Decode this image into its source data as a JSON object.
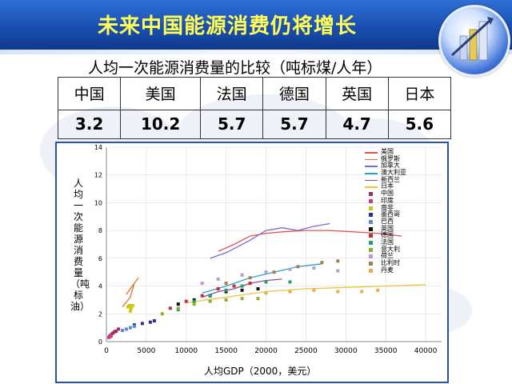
{
  "header": {
    "title": "未来中国能源消费仍将增长"
  },
  "subtitle": "人均一次能源消费量的比较（吨标煤/人年）",
  "comparison_table": {
    "countries": [
      "中国",
      "美国",
      "法国",
      "德国",
      "英国",
      "日本"
    ],
    "values": [
      "3.2",
      "10.2",
      "5.7",
      "5.7",
      "4.7",
      "5.6"
    ]
  },
  "chart_data": {
    "type": "scatter",
    "xlabel": "人均GDP（2000，美元）",
    "ylabel": "人均一次能源消费量（吨标油）",
    "xlim": [
      0,
      42000
    ],
    "ylim": [
      0,
      14
    ],
    "xticks": [
      "0",
      "5000",
      "10000",
      "15000",
      "20000",
      "25000",
      "30000",
      "35000",
      "40000"
    ],
    "yticks": [
      "0",
      "2",
      "4",
      "6",
      "8",
      "10",
      "12",
      "14"
    ],
    "grid": true,
    "legend_position": "right",
    "series": [
      {
        "name": "美国",
        "color": "#e05050",
        "style": "line",
        "points": [
          [
            14000,
            6.5
          ],
          [
            16000,
            7.0
          ],
          [
            18000,
            7.6
          ],
          [
            20000,
            7.8
          ],
          [
            22000,
            7.9
          ],
          [
            25000,
            8.0
          ],
          [
            28000,
            8.0
          ],
          [
            31000,
            7.9
          ],
          [
            34000,
            7.8
          ],
          [
            37000,
            7.6
          ]
        ]
      },
      {
        "name": "俄罗斯",
        "color": "#e07030",
        "style": "line",
        "points": [
          [
            2000,
            2.5
          ],
          [
            3000,
            3.2
          ],
          [
            3500,
            4.2
          ],
          [
            4000,
            4.6
          ],
          [
            3000,
            3.8
          ],
          [
            2500,
            3.4
          ]
        ]
      },
      {
        "name": "加拿大",
        "color": "#7a6ad0",
        "style": "line",
        "points": [
          [
            13000,
            6.0
          ],
          [
            15000,
            6.4
          ],
          [
            18000,
            7.3
          ],
          [
            20000,
            8.0
          ],
          [
            22000,
            8.2
          ],
          [
            24000,
            8.0
          ],
          [
            26000,
            8.3
          ],
          [
            28000,
            8.5
          ]
        ]
      },
      {
        "name": "澳大利亚",
        "color": "#30a0c0",
        "style": "line",
        "points": [
          [
            12000,
            3.5
          ],
          [
            15000,
            4.0
          ],
          [
            18000,
            4.6
          ],
          [
            21000,
            5.0
          ],
          [
            24000,
            5.4
          ],
          [
            27000,
            5.6
          ]
        ]
      },
      {
        "name": "新西兰",
        "color": "#8a4fa0",
        "style": "line",
        "points": [
          [
            12000,
            3.2
          ],
          [
            14000,
            3.6
          ],
          [
            16000,
            3.8
          ],
          [
            18000,
            4.2
          ],
          [
            20000,
            4.4
          ],
          [
            22000,
            4.5
          ]
        ]
      },
      {
        "name": "日本",
        "color": "#f0c040",
        "style": "line",
        "points": [
          [
            10000,
            2.8
          ],
          [
            15000,
            3.2
          ],
          [
            20000,
            3.6
          ],
          [
            25000,
            3.8
          ],
          [
            30000,
            3.9
          ],
          [
            35000,
            4.0
          ],
          [
            40000,
            4.1
          ]
        ]
      },
      {
        "name": "中国",
        "color": "#a03060",
        "style": "marker",
        "points": [
          [
            400,
            0.4
          ],
          [
            600,
            0.5
          ],
          [
            800,
            0.6
          ],
          [
            1000,
            0.7
          ],
          [
            1200,
            0.75
          ],
          [
            1500,
            0.9
          ]
        ]
      },
      {
        "name": "印度",
        "color": "#c04080",
        "style": "marker",
        "points": [
          [
            300,
            0.3
          ],
          [
            400,
            0.35
          ],
          [
            500,
            0.4
          ],
          [
            600,
            0.42
          ]
        ]
      },
      {
        "name": "南非",
        "color": "#c8c810",
        "style": "marker",
        "points": [
          [
            2700,
            2.5
          ],
          [
            2900,
            2.6
          ],
          [
            3100,
            2.4
          ],
          [
            3300,
            2.6
          ],
          [
            3000,
            2.2
          ]
        ]
      },
      {
        "name": "墨西哥",
        "color": "#30308a",
        "style": "marker",
        "points": [
          [
            3500,
            1.2
          ],
          [
            4500,
            1.3
          ],
          [
            5500,
            1.4
          ],
          [
            6000,
            1.5
          ]
        ]
      },
      {
        "name": "巴西",
        "color": "#5a8ad0",
        "style": "marker",
        "points": [
          [
            2000,
            0.8
          ],
          [
            2500,
            0.9
          ],
          [
            3000,
            1.0
          ],
          [
            3500,
            1.1
          ]
        ]
      },
      {
        "name": "英国",
        "color": "#101010",
        "style": "marker",
        "points": [
          [
            9000,
            2.7
          ],
          [
            11000,
            3.0
          ],
          [
            13000,
            3.3
          ],
          [
            15000,
            3.6
          ],
          [
            17000,
            3.7
          ],
          [
            19000,
            3.8
          ]
        ]
      },
      {
        "name": "德国",
        "color": "#c03030",
        "style": "marker",
        "points": [
          [
            8000,
            2.4
          ],
          [
            10000,
            2.9
          ],
          [
            12000,
            3.3
          ],
          [
            14000,
            3.8
          ],
          [
            16000,
            4.0
          ],
          [
            18000,
            4.2
          ]
        ]
      },
      {
        "name": "法国",
        "color": "#20a070",
        "style": "marker",
        "points": [
          [
            9000,
            2.3
          ],
          [
            11000,
            2.9
          ],
          [
            13000,
            3.3
          ],
          [
            15000,
            3.7
          ],
          [
            17000,
            4.0
          ],
          [
            20000,
            4.3
          ],
          [
            23000,
            4.3
          ]
        ]
      },
      {
        "name": "意大利",
        "color": "#8ab030",
        "style": "marker",
        "points": [
          [
            7000,
            2.0
          ],
          [
            9000,
            2.4
          ],
          [
            11000,
            2.7
          ],
          [
            13000,
            2.9
          ],
          [
            15000,
            3.0
          ],
          [
            17000,
            3.1
          ],
          [
            19000,
            3.1
          ]
        ]
      },
      {
        "name": "荷兰",
        "color": "#b0a0d0",
        "style": "marker",
        "points": [
          [
            12000,
            4.2
          ],
          [
            14000,
            4.5
          ],
          [
            17000,
            4.8
          ],
          [
            20000,
            5.0
          ],
          [
            23000,
            5.2
          ],
          [
            26000,
            5.3
          ],
          [
            29000,
            5.1
          ]
        ]
      },
      {
        "name": "比利时",
        "color": "#a08050",
        "style": "marker",
        "points": [
          [
            15000,
            4.2
          ],
          [
            18000,
            4.6
          ],
          [
            21000,
            5.0
          ],
          [
            24000,
            5.4
          ],
          [
            27000,
            5.7
          ],
          [
            29000,
            5.8
          ]
        ]
      },
      {
        "name": "丹麦",
        "color": "#e0b050",
        "style": "marker",
        "points": [
          [
            20000,
            3.5
          ],
          [
            23000,
            3.6
          ],
          [
            26000,
            3.7
          ],
          [
            29000,
            3.6
          ],
          [
            32000,
            3.6
          ],
          [
            34000,
            3.7
          ]
        ]
      }
    ]
  }
}
